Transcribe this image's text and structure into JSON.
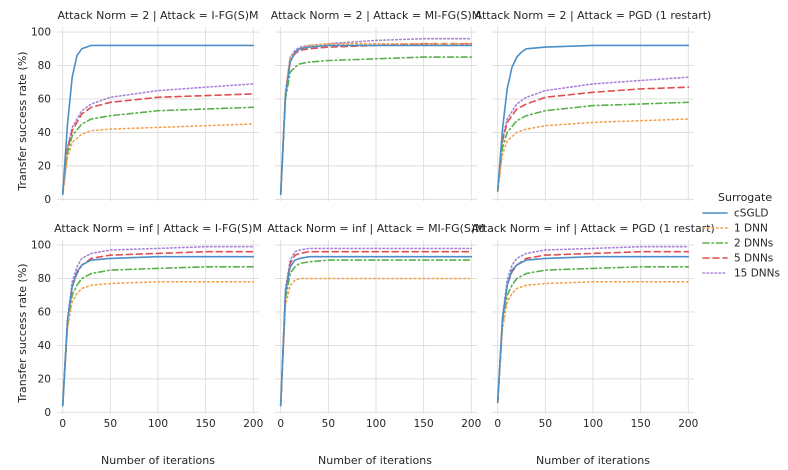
{
  "figure": {
    "y_axis_label": "Transfer success rate (%)",
    "x_axis_label": "Number of iterations",
    "x_ticks": [
      0,
      50,
      100,
      150,
      200
    ],
    "y_ticks": [
      0,
      20,
      40,
      60,
      80,
      100
    ],
    "xlim": [
      -6,
      206
    ],
    "ylim": [
      -1,
      103
    ],
    "grid": true,
    "legend_title": "Surrogate",
    "legend_position": "right"
  },
  "colors": {
    "cSGLD": "#4c8fc6",
    "1 DNN": "#f5a04b",
    "2 DNNs": "#5ab04c",
    "5 DNNs": "#df4f4f",
    "15 DNNs": "#a983d4",
    "panel_bg": "#ffffff",
    "grid": "#dcdcdc"
  },
  "legend": [
    {
      "name": "cSGLD",
      "dash": "solid"
    },
    {
      "name": "1 DNN",
      "dash": "dotted"
    },
    {
      "name": "2 DNNs",
      "dash": "dashdot"
    },
    {
      "name": "5 DNNs",
      "dash": "dashed"
    },
    {
      "name": "15 DNNs",
      "dash": "densely-dotted"
    }
  ],
  "chart_data": [
    {
      "type": "line",
      "title": "Attack Norm = 2 | Attack = I-FG(S)M",
      "series": [
        {
          "name": "cSGLD",
          "x": [
            0,
            5,
            10,
            15,
            20,
            30,
            50,
            100,
            150,
            200
          ],
          "y": [
            3,
            45,
            73,
            86,
            90,
            92,
            92,
            92,
            92,
            92
          ]
        },
        {
          "name": "1 DNN",
          "x": [
            0,
            5,
            10,
            20,
            30,
            50,
            100,
            150,
            200
          ],
          "y": [
            3,
            25,
            34,
            39,
            41,
            42,
            43,
            44,
            45
          ]
        },
        {
          "name": "2 DNNs",
          "x": [
            0,
            5,
            10,
            20,
            30,
            50,
            100,
            150,
            200
          ],
          "y": [
            3,
            28,
            38,
            45,
            48,
            50,
            53,
            54,
            55
          ]
        },
        {
          "name": "5 DNNs",
          "x": [
            0,
            5,
            10,
            20,
            30,
            50,
            100,
            150,
            200
          ],
          "y": [
            3,
            30,
            41,
            51,
            55,
            58,
            61,
            62,
            63
          ]
        },
        {
          "name": "15 DNNs",
          "x": [
            0,
            5,
            10,
            20,
            30,
            50,
            100,
            150,
            200
          ],
          "y": [
            3,
            31,
            43,
            53,
            57,
            61,
            65,
            67,
            69
          ]
        }
      ]
    },
    {
      "type": "line",
      "title": "Attack Norm = 2 | Attack = MI-FG(S)M",
      "series": [
        {
          "name": "cSGLD",
          "x": [
            0,
            5,
            10,
            15,
            20,
            30,
            50,
            100,
            150,
            200
          ],
          "y": [
            3,
            62,
            82,
            88,
            90,
            91,
            92,
            92,
            92,
            92
          ]
        },
        {
          "name": "1 DNN",
          "x": [
            0,
            5,
            10,
            20,
            30,
            50,
            100,
            150,
            200
          ],
          "y": [
            3,
            65,
            85,
            90,
            92,
            93,
            93,
            93,
            93
          ]
        },
        {
          "name": "2 DNNs",
          "x": [
            0,
            5,
            10,
            15,
            20,
            30,
            50,
            100,
            150,
            200
          ],
          "y": [
            3,
            60,
            76,
            79,
            81,
            82,
            83,
            84,
            85,
            85
          ]
        },
        {
          "name": "5 DNNs",
          "x": [
            0,
            5,
            10,
            15,
            20,
            30,
            50,
            100,
            150,
            200
          ],
          "y": [
            3,
            63,
            83,
            87,
            89,
            90,
            91,
            92,
            93,
            93
          ]
        },
        {
          "name": "15 DNNs",
          "x": [
            0,
            5,
            10,
            15,
            20,
            30,
            50,
            100,
            150,
            200
          ],
          "y": [
            3,
            64,
            85,
            89,
            91,
            92,
            93,
            95,
            96,
            96
          ]
        }
      ]
    },
    {
      "type": "line",
      "title": "Attack Norm = 2 | Attack = PGD (1 restart)",
      "series": [
        {
          "name": "cSGLD",
          "x": [
            0,
            5,
            10,
            15,
            20,
            25,
            30,
            50,
            100,
            150,
            200
          ],
          "y": [
            5,
            42,
            66,
            79,
            85,
            88,
            90,
            91,
            92,
            92,
            92
          ]
        },
        {
          "name": "1 DNN",
          "x": [
            0,
            5,
            10,
            20,
            30,
            50,
            100,
            150,
            200
          ],
          "y": [
            5,
            27,
            35,
            40,
            42,
            44,
            46,
            47,
            48
          ]
        },
        {
          "name": "2 DNNs",
          "x": [
            0,
            5,
            10,
            20,
            30,
            50,
            100,
            150,
            200
          ],
          "y": [
            5,
            31,
            40,
            47,
            50,
            53,
            56,
            57,
            58
          ]
        },
        {
          "name": "5 DNNs",
          "x": [
            0,
            5,
            10,
            20,
            30,
            50,
            100,
            150,
            200
          ],
          "y": [
            5,
            35,
            46,
            54,
            57,
            61,
            64,
            66,
            67
          ]
        },
        {
          "name": "15 DNNs",
          "x": [
            0,
            5,
            10,
            20,
            30,
            50,
            100,
            150,
            200
          ],
          "y": [
            5,
            36,
            48,
            57,
            61,
            65,
            69,
            71,
            73
          ]
        }
      ]
    },
    {
      "type": "line",
      "title": "Attack Norm = inf | Attack = I-FG(S)M",
      "series": [
        {
          "name": "cSGLD",
          "x": [
            0,
            5,
            10,
            15,
            20,
            30,
            50,
            100,
            150,
            200
          ],
          "y": [
            4,
            55,
            75,
            84,
            88,
            91,
            92,
            93,
            93,
            93
          ]
        },
        {
          "name": "1 DNN",
          "x": [
            0,
            5,
            10,
            15,
            20,
            30,
            50,
            100,
            150,
            200
          ],
          "y": [
            4,
            50,
            66,
            71,
            74,
            76,
            77,
            78,
            78,
            78
          ]
        },
        {
          "name": "2 DNNs",
          "x": [
            0,
            5,
            10,
            15,
            20,
            30,
            50,
            100,
            150,
            200
          ],
          "y": [
            4,
            52,
            70,
            76,
            80,
            83,
            85,
            86,
            87,
            87
          ]
        },
        {
          "name": "5 DNNs",
          "x": [
            0,
            5,
            10,
            15,
            20,
            30,
            50,
            100,
            150,
            200
          ],
          "y": [
            4,
            54,
            75,
            83,
            88,
            92,
            94,
            95,
            96,
            96
          ]
        },
        {
          "name": "15 DNNs",
          "x": [
            0,
            5,
            10,
            15,
            20,
            30,
            50,
            100,
            150,
            200
          ],
          "y": [
            4,
            56,
            78,
            87,
            92,
            95,
            97,
            98,
            99,
            99
          ]
        }
      ]
    },
    {
      "type": "line",
      "title": "Attack Norm = inf | Attack = MI-FG(S)M",
      "series": [
        {
          "name": "cSGLD",
          "x": [
            0,
            5,
            10,
            15,
            20,
            30,
            50,
            100,
            150,
            200
          ],
          "y": [
            4,
            72,
            87,
            91,
            92,
            93,
            93,
            93,
            93,
            93
          ]
        },
        {
          "name": "1 DNN",
          "x": [
            0,
            5,
            10,
            15,
            20,
            30,
            50,
            100,
            150,
            200
          ],
          "y": [
            4,
            64,
            76,
            79,
            80,
            80,
            80,
            80,
            80,
            80
          ]
        },
        {
          "name": "2 DNNs",
          "x": [
            0,
            5,
            10,
            15,
            20,
            30,
            50,
            100,
            150,
            200
          ],
          "y": [
            4,
            68,
            83,
            87,
            89,
            90,
            91,
            91,
            91,
            91
          ]
        },
        {
          "name": "5 DNNs",
          "x": [
            0,
            5,
            10,
            15,
            20,
            30,
            50,
            100,
            150,
            200
          ],
          "y": [
            4,
            72,
            89,
            94,
            95,
            96,
            96,
            96,
            96,
            96
          ]
        },
        {
          "name": "15 DNNs",
          "x": [
            0,
            5,
            10,
            15,
            20,
            30,
            50,
            100,
            150,
            200
          ],
          "y": [
            4,
            74,
            91,
            96,
            97,
            98,
            98,
            98,
            98,
            98
          ]
        }
      ]
    },
    {
      "type": "line",
      "title": "Attack Norm = inf | Attack = PGD (1 restart)",
      "series": [
        {
          "name": "cSGLD",
          "x": [
            0,
            5,
            10,
            15,
            20,
            30,
            50,
            100,
            150,
            200
          ],
          "y": [
            6,
            56,
            76,
            85,
            88,
            91,
            92,
            93,
            93,
            93
          ]
        },
        {
          "name": "1 DNN",
          "x": [
            0,
            5,
            10,
            15,
            20,
            30,
            50,
            100,
            150,
            200
          ],
          "y": [
            6,
            50,
            66,
            71,
            74,
            76,
            77,
            78,
            78,
            78
          ]
        },
        {
          "name": "2 DNNs",
          "x": [
            0,
            5,
            10,
            15,
            20,
            30,
            50,
            100,
            150,
            200
          ],
          "y": [
            6,
            52,
            70,
            76,
            80,
            83,
            85,
            86,
            87,
            87
          ]
        },
        {
          "name": "5 DNNs",
          "x": [
            0,
            5,
            10,
            15,
            20,
            30,
            50,
            100,
            150,
            200
          ],
          "y": [
            6,
            55,
            76,
            84,
            88,
            92,
            94,
            95,
            96,
            96
          ]
        },
        {
          "name": "15 DNNs",
          "x": [
            0,
            5,
            10,
            15,
            20,
            30,
            50,
            100,
            150,
            200
          ],
          "y": [
            6,
            57,
            79,
            88,
            92,
            95,
            97,
            98,
            99,
            99
          ]
        }
      ]
    }
  ]
}
